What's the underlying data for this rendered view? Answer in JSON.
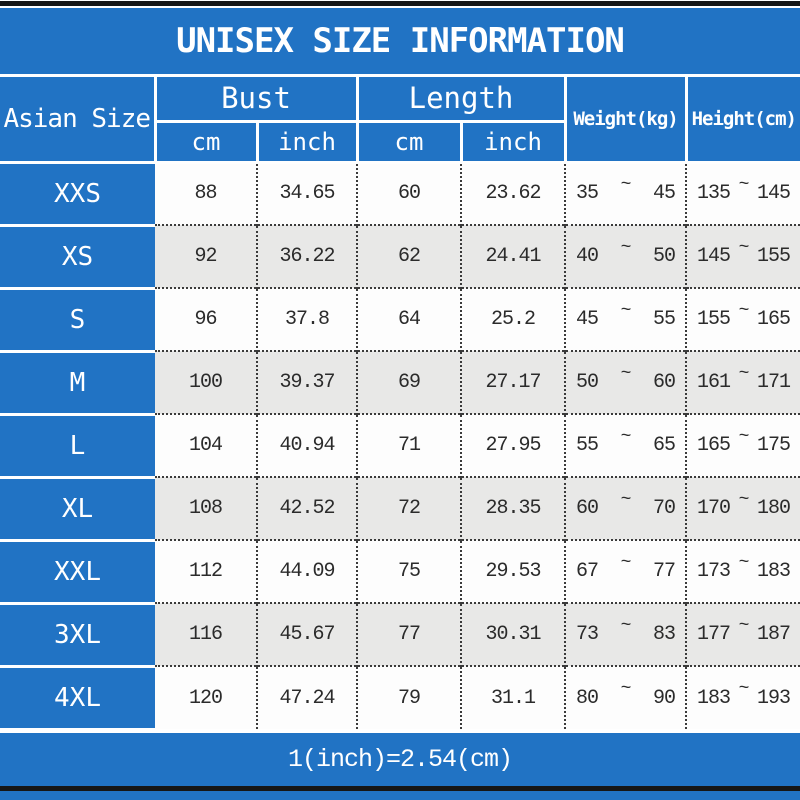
{
  "title": "UNISEX SIZE INFORMATION",
  "colors": {
    "header_blue": "#2173c4",
    "row_white": "#fdfdfd",
    "row_gray": "#e8e8e7",
    "frame_black": "#161616",
    "data_text": "#2b2b2b"
  },
  "chart_data": {
    "type": "table",
    "title": "UNISEX SIZE INFORMATION",
    "headers": {
      "size_col": "Asian Size",
      "bust_group": "Bust",
      "length_group": "Length",
      "unit_cm": "cm",
      "unit_inch": "inch",
      "weight_col": "Weight(kg)",
      "height_col": "Height(cm)"
    },
    "tilde": "~",
    "columns": [
      "Asian Size",
      "Bust cm",
      "Bust inch",
      "Length cm",
      "Length inch",
      "Weight(kg) min",
      "Weight(kg) max",
      "Height(cm) min",
      "Height(cm) max"
    ],
    "rows": [
      [
        "XXS",
        "88",
        "34.65",
        "60",
        "23.62",
        "35",
        "45",
        "135",
        "145"
      ],
      [
        "XS",
        "92",
        "36.22",
        "62",
        "24.41",
        "40",
        "50",
        "145",
        "155"
      ],
      [
        "S",
        "96",
        "37.8",
        "64",
        "25.2",
        "45",
        "55",
        "155",
        "165"
      ],
      [
        "M",
        "100",
        "39.37",
        "69",
        "27.17",
        "50",
        "60",
        "161",
        "171"
      ],
      [
        "L",
        "104",
        "40.94",
        "71",
        "27.95",
        "55",
        "65",
        "165",
        "175"
      ],
      [
        "XL",
        "108",
        "42.52",
        "72",
        "28.35",
        "60",
        "70",
        "170",
        "180"
      ],
      [
        "XXL",
        "112",
        "44.09",
        "75",
        "29.53",
        "67",
        "77",
        "173",
        "183"
      ],
      [
        "3XL",
        "116",
        "45.67",
        "77",
        "30.31",
        "73",
        "83",
        "177",
        "187"
      ],
      [
        "4XL",
        "120",
        "47.24",
        "79",
        "31.1",
        "80",
        "90",
        "183",
        "193"
      ]
    ],
    "footer": "1(inch)=2.54(cm)"
  }
}
